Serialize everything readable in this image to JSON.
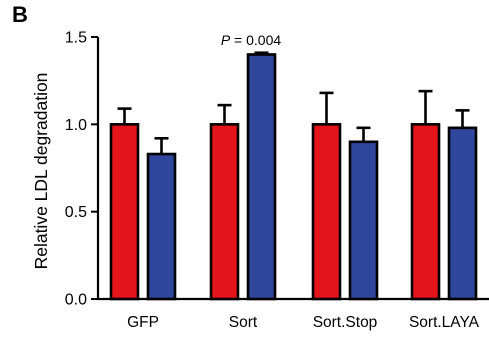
{
  "panel_label": "B",
  "chart_data": {
    "type": "bar",
    "title": "",
    "xlabel": "",
    "ylabel": "Relative LDL degradation",
    "ylim": [
      0,
      1.5
    ],
    "yticks": [
      "0.0",
      "0.5",
      "1.0",
      "1.5"
    ],
    "categories": [
      "GFP",
      "Sort",
      "Sort.Stop",
      "Sort.LAYA"
    ],
    "series": [
      {
        "color": "#e3151b",
        "values": [
          1.0,
          1.0,
          1.0,
          1.0
        ],
        "errors": [
          0.09,
          0.11,
          0.18,
          0.19
        ]
      },
      {
        "color": "#2e469b",
        "values": [
          0.83,
          1.4,
          0.9,
          0.98
        ],
        "errors": [
          0.09,
          0.01,
          0.08,
          0.1
        ]
      }
    ],
    "annotation": {
      "category": "Sort",
      "prefix": "P",
      "text": " = 0.004"
    },
    "grid": false,
    "legend": "none"
  }
}
